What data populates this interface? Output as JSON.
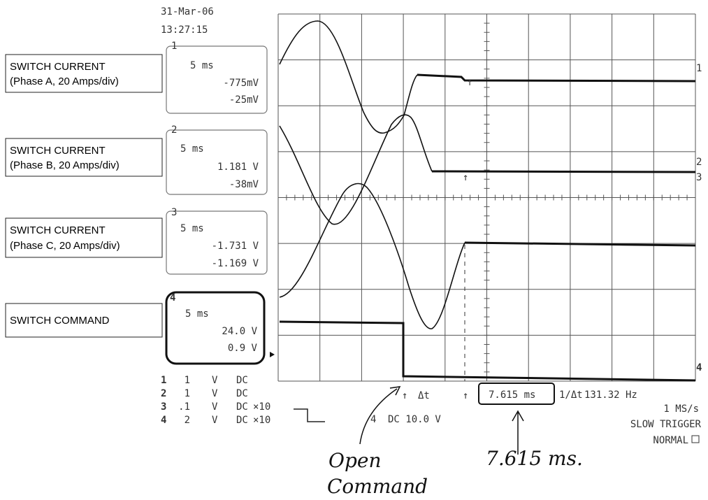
{
  "header": {
    "date": "31-Mar-06",
    "time": "13:27:15"
  },
  "labels": [
    {
      "title": "SWITCH CURRENT",
      "detail": "(Phase A, 20 Amps/div)"
    },
    {
      "title": "SWITCH CURRENT",
      "detail": "(Phase B, 20 Amps/div)"
    },
    {
      "title": "SWITCH CURRENT",
      "detail": "(Phase C, 20 Amps/div)"
    },
    {
      "title": "SWITCH COMMAND"
    }
  ],
  "channels": [
    {
      "number": "1",
      "timebase": "5 ms",
      "offset": "-775mV",
      "position": "-25mV"
    },
    {
      "number": "2",
      "timebase": "5 ms",
      "offset": "1.181 V",
      "position": "-38mV"
    },
    {
      "number": "3",
      "timebase": "5 ms",
      "offset": "-1.731 V",
      "position": "-1.169 V"
    },
    {
      "number": "4",
      "timebase": "5 ms",
      "offset": "24.0 V",
      "position": "0.9 V"
    }
  ],
  "settings": [
    {
      "channel": "1",
      "scale": "1",
      "unit": "V",
      "coupling": "DC"
    },
    {
      "channel": "2",
      "scale": "1",
      "unit": "V",
      "coupling": "DC"
    },
    {
      "channel": "3",
      "scale": ".1",
      "unit": "V",
      "coupling": "DC",
      "probe": "×10"
    },
    {
      "channel": "4",
      "scale": "2",
      "unit": "V",
      "coupling": "DC",
      "probe": "×10"
    }
  ],
  "trigger": {
    "channel": "4",
    "setting": "DC 10.0 V"
  },
  "readout": {
    "delta_label": "Δt",
    "delta": "7.615 ms",
    "inverse_label": "1/Δt",
    "frequency": "131.32 Hz",
    "sample_rate": "1 MS/s",
    "mode": "SLOW TRIGGER",
    "trigger_mode": "NORMAL"
  },
  "trace_markers": [
    "1",
    "2",
    "3",
    "4"
  ],
  "handwriting": {
    "open_command": [
      "Open",
      "Command"
    ],
    "measurement": "7.615 ms."
  }
}
